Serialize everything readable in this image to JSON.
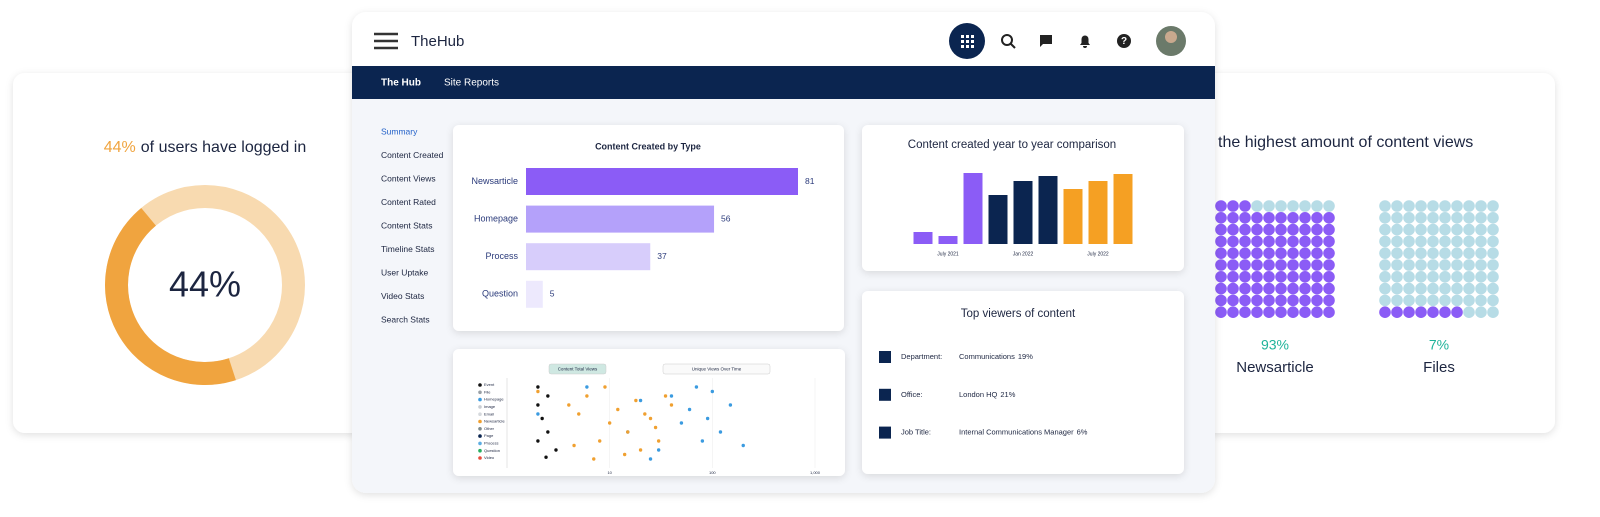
{
  "app": {
    "brand": "TheHub",
    "nav": [
      "The Hub",
      "Site Reports"
    ],
    "sidebar": [
      "Summary",
      "Content Created",
      "Content Views",
      "Content Rated",
      "Content Stats",
      "Timeline Stats",
      "User Uptake",
      "Video Stats",
      "Search Stats"
    ]
  },
  "login_card": {
    "title_highlight": "44%",
    "title_rest": "of users have logged in",
    "center_label": "44%",
    "value": 44,
    "colors": [
      "#f0a43f",
      "#f8dab0"
    ]
  },
  "views_card": {
    "title": "the highest amount of content views",
    "empty_color": "#b7dce6",
    "items": [
      {
        "value": 93,
        "value_label": "93%",
        "label": "Newsarticle",
        "color": "#8b5cf6"
      },
      {
        "value": 7,
        "value_label": "7%",
        "label": "Files",
        "color": "#8b5cf6"
      }
    ]
  },
  "chart_data": [
    {
      "type": "bar",
      "title": "Content Created by Type",
      "categories": [
        "Newsarticle",
        "Homepage",
        "Process",
        "Question"
      ],
      "values": [
        81,
        56,
        37,
        5
      ],
      "colors": [
        "#8b5cf6",
        "#b4a1fa",
        "#d7cdfb",
        "#ede9fd"
      ]
    },
    {
      "type": "column",
      "title": "Content created year to year comparison",
      "categories": [
        null,
        "July 2021",
        null,
        null,
        "Jan 2022",
        null,
        null,
        "July 2022",
        null
      ],
      "values": [
        12,
        8,
        71,
        49,
        63,
        68,
        55,
        63,
        70
      ],
      "colors": [
        "#8b5cf6",
        "#8b5cf6",
        "#8b5cf6",
        "#0b2550",
        "#0b2550",
        "#0b2550",
        "#f5a023",
        "#f5a023",
        "#f5a023"
      ]
    },
    {
      "type": "scatter",
      "buttons": [
        "Content Total Views",
        "Unique Views Over Time"
      ],
      "log_x": true,
      "xlim": [
        1,
        1000
      ],
      "ylim": [
        0,
        10
      ],
      "xticks": [
        10,
        100,
        {
          "value": 1000,
          "label": "1,000"
        }
      ],
      "series": [
        {
          "name": "Event",
          "color": "#111111",
          "x": [
            2,
            2,
            2.2,
            2.5,
            2.5,
            3,
            2,
            2.4
          ],
          "y": [
            9,
            7,
            5.5,
            8,
            4,
            2,
            3,
            1.2
          ]
        },
        {
          "name": "File",
          "color": "#9aa0a6",
          "x": [],
          "y": []
        },
        {
          "name": "Homepage",
          "color": "#3b9be0",
          "x": [
            2,
            6,
            15,
            20,
            30,
            40,
            50,
            60,
            80,
            100,
            120,
            150,
            200,
            25,
            70,
            90
          ],
          "y": [
            6,
            9,
            4,
            7.5,
            2,
            8,
            5,
            6.5,
            3,
            8.5,
            4,
            7,
            2.5,
            1,
            9,
            5.5
          ]
        },
        {
          "name": "Image",
          "color": "#c9cdd2",
          "x": [],
          "y": []
        },
        {
          "name": "Email",
          "color": "#d6d9dd",
          "x": [],
          "y": []
        },
        {
          "name": "Newsarticle",
          "color": "#f0a030",
          "x": [
            2,
            4,
            5,
            6,
            8,
            10,
            12,
            15,
            18,
            20,
            25,
            30,
            35,
            4.5,
            7,
            9,
            14,
            22,
            28,
            40
          ],
          "y": [
            8.5,
            7,
            6,
            8,
            3,
            5,
            6.5,
            4,
            7.5,
            2,
            5.5,
            3,
            8,
            2.5,
            1,
            9,
            1.5,
            6,
            4.5,
            7
          ]
        },
        {
          "name": "Other",
          "color": "#7f8c8d",
          "x": [],
          "y": []
        },
        {
          "name": "Page",
          "color": "#0b2550",
          "x": [],
          "y": []
        },
        {
          "name": "Process",
          "color": "#5dade2",
          "x": [],
          "y": []
        },
        {
          "name": "Question",
          "color": "#27ae60",
          "x": [],
          "y": []
        },
        {
          "name": "Video",
          "color": "#e74c3c",
          "x": [],
          "y": []
        }
      ]
    }
  ],
  "top_viewers": {
    "title": "Top viewers of content",
    "rows": [
      {
        "label": "Department:",
        "value": "Communications",
        "share": "19%"
      },
      {
        "label": "Office:",
        "value": "London HQ",
        "share": "21%"
      },
      {
        "label": "Job Title:",
        "value": "Internal Communications Manager",
        "share": "6%"
      }
    ]
  }
}
